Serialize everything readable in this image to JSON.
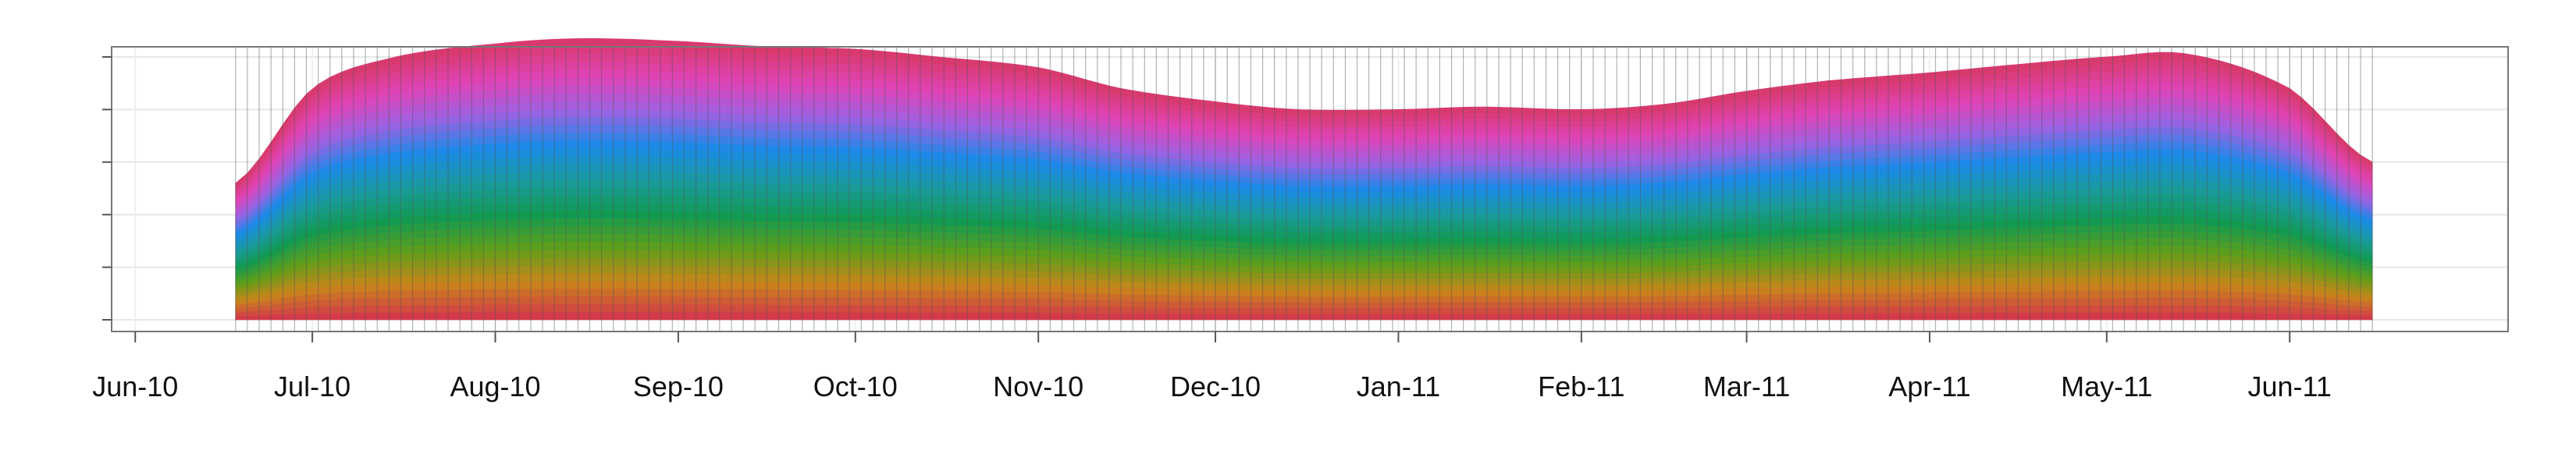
{
  "chart_data": {
    "type": "area",
    "title": "",
    "xlabel": "",
    "ylabel": "",
    "stacked": true,
    "grid": true,
    "legend": "none",
    "x_tick_labels": [
      "Jun-10",
      "Jul-10",
      "Aug-10",
      "Sep-10",
      "Oct-10",
      "Nov-10",
      "Dec-10",
      "Jan-11",
      "Feb-11",
      "Mar-11",
      "Apr-11",
      "May-11",
      "Jun-11"
    ],
    "x_tick_dates": [
      "2010-06-01",
      "2010-07-01",
      "2010-08-01",
      "2010-09-01",
      "2010-10-01",
      "2010-11-01",
      "2010-12-01",
      "2011-01-01",
      "2011-02-01",
      "2011-03-01",
      "2011-04-01",
      "2011-05-01",
      "2011-06-01"
    ],
    "xlim": [
      "2010-05-28",
      "2011-07-08"
    ],
    "ylim": [
      0,
      1
    ],
    "y_tick_values": [
      0.0,
      0.2,
      0.4,
      0.6,
      0.8,
      1.0
    ],
    "y_tick_labels": [
      "",
      "",
      "",
      "",
      "",
      ""
    ],
    "color_ramp": [
      "#d33a4a",
      "#c9851a",
      "#5f9e1a",
      "#119a52",
      "#1a9aa0",
      "#1a8ae8",
      "#9b62e3",
      "#e044b8",
      "#d93a6e"
    ],
    "series_count": 36,
    "total": {
      "x": [
        "2010-06-18",
        "2010-07-01",
        "2010-07-15",
        "2010-08-01",
        "2010-08-15",
        "2010-09-01",
        "2010-09-15",
        "2010-10-01",
        "2010-10-15",
        "2010-11-01",
        "2010-11-15",
        "2010-12-01",
        "2010-12-15",
        "2011-01-01",
        "2011-01-15",
        "2011-02-01",
        "2011-02-15",
        "2011-03-01",
        "2011-03-15",
        "2011-04-01",
        "2011-04-15",
        "2011-05-01",
        "2011-05-15",
        "2011-06-01",
        "2011-06-15"
      ],
      "y": [
        0.52,
        0.88,
        1.0,
        1.05,
        1.07,
        1.06,
        1.04,
        1.03,
        1.0,
        0.96,
        0.88,
        0.83,
        0.8,
        0.8,
        0.81,
        0.8,
        0.82,
        0.87,
        0.91,
        0.94,
        0.97,
        1.0,
        1.01,
        0.88,
        0.6
      ]
    }
  }
}
